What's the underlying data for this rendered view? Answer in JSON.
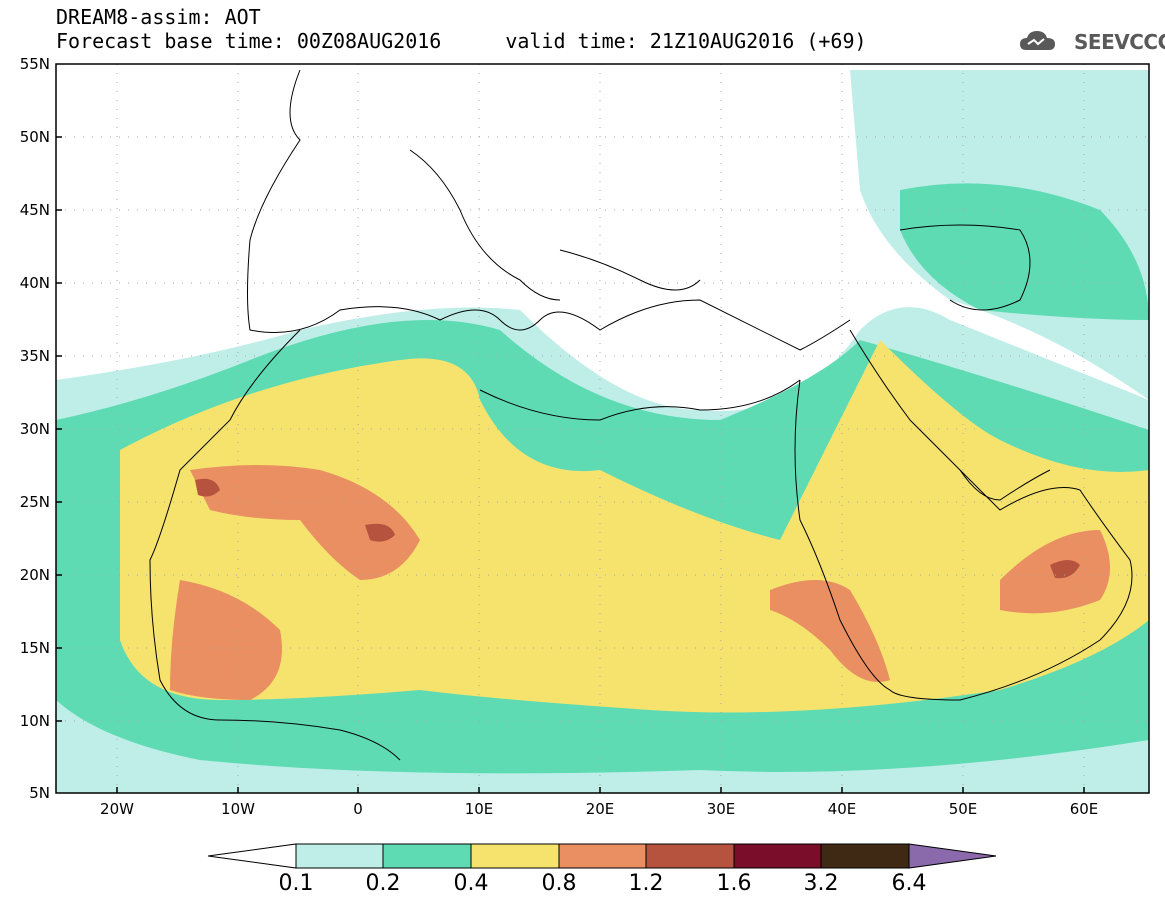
{
  "header": {
    "title_line1": "DREAM8-assim: AOT",
    "base_time": "Forecast base time: 00Z08AUG2016",
    "valid_time": "valid time: 21Z10AUG2016 (+69)"
  },
  "logo": {
    "text": "SEEVCCC",
    "icon": "cloud-logo-icon"
  },
  "map": {
    "lat_range": [
      5,
      55
    ],
    "lon_range": [
      -25,
      65
    ],
    "lat_labels": [
      "55N",
      "50N",
      "45N",
      "40N",
      "35N",
      "30N",
      "25N",
      "20N",
      "15N",
      "10N",
      "5N"
    ],
    "lon_labels": [
      "20W",
      "10W",
      "0",
      "10E",
      "20E",
      "30E",
      "40E",
      "50E",
      "60E"
    ]
  },
  "colorbar": {
    "labels": [
      "0.1",
      "0.2",
      "0.4",
      "0.8",
      "1.2",
      "1.6",
      "3.2",
      "6.4"
    ],
    "colors": [
      "#ffffff",
      "#bfeee8",
      "#5fdbb4",
      "#f5e36e",
      "#e98f62",
      "#b5533f",
      "#7a0d2a",
      "#3f2814",
      "#8a6aaa"
    ]
  }
}
